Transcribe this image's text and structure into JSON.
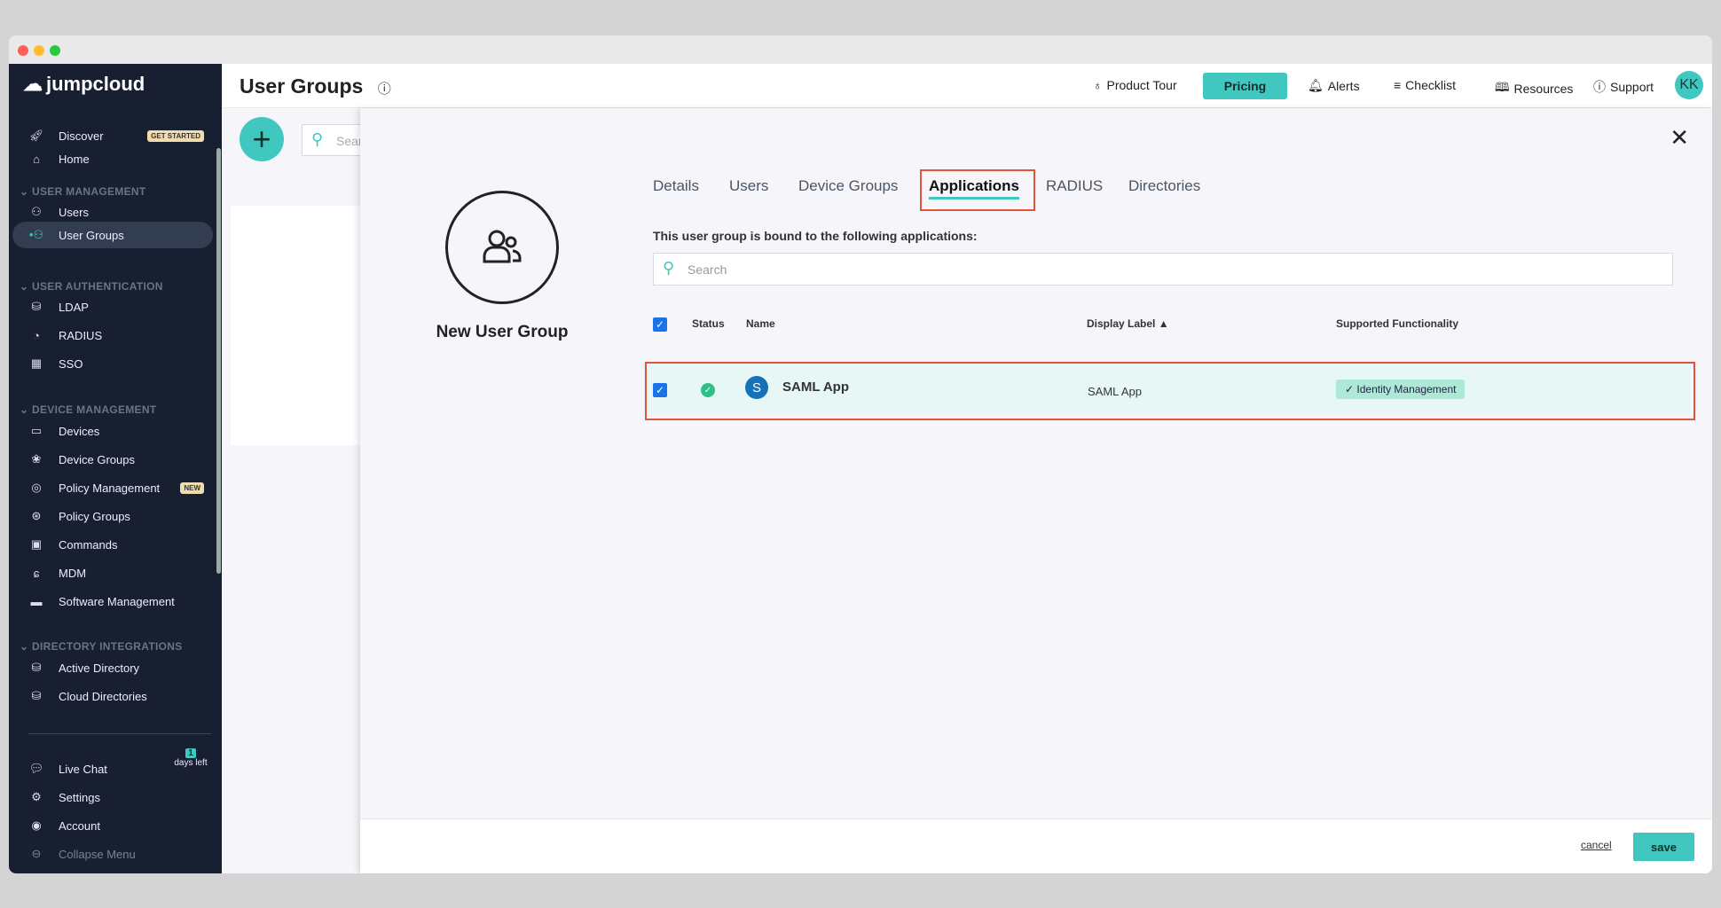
{
  "sidebar": {
    "logo": "jumpcloud",
    "top": [
      {
        "label": "Discover",
        "badge": "GET STARTED"
      },
      {
        "label": "Home"
      }
    ],
    "sections": [
      {
        "title": "USER MANAGEMENT",
        "items": [
          "Users",
          "User Groups"
        ]
      },
      {
        "title": "USER AUTHENTICATION",
        "items": [
          "LDAP",
          "RADIUS",
          "SSO"
        ]
      },
      {
        "title": "DEVICE MANAGEMENT",
        "items": [
          "Devices",
          "Device Groups",
          "Policy Management",
          "Policy Groups",
          "Commands",
          "MDM",
          "Software Management"
        ]
      },
      {
        "title": "DIRECTORY INTEGRATIONS",
        "items": [
          "Active Directory",
          "Cloud Directories"
        ]
      }
    ],
    "policy_badge": "NEW",
    "bottom": [
      "Live Chat",
      "Settings",
      "Account",
      "Collapse Menu"
    ],
    "trial_days": "1",
    "trial_text": "days left"
  },
  "header": {
    "title": "User Groups",
    "product_tour": "Product Tour",
    "pricing": "Pricing",
    "alerts": "Alerts",
    "checklist": "Checklist",
    "resources": "Resources",
    "support": "Support",
    "avatar": "KK"
  },
  "background": {
    "search_placeholder": "Sear"
  },
  "modal": {
    "group_name": "New User Group",
    "tabs": [
      "Details",
      "Users",
      "Device Groups",
      "Applications",
      "RADIUS",
      "Directories"
    ],
    "active_tab": "Applications",
    "bound_text": "This user group is bound to the following applications:",
    "search_placeholder": "Search",
    "columns": [
      "Status",
      "Name",
      "Display Label ▲",
      "Supported Functionality"
    ],
    "rows": [
      {
        "checked": true,
        "status": "active",
        "avatar": "S",
        "name": "SAML App",
        "display_label": "SAML App",
        "functionality": "✓ Identity Management"
      }
    ],
    "cancel": "cancel",
    "save": "save"
  },
  "colors": {
    "accent": "#40c8c0",
    "sidebar": "#171f31",
    "highlight": "#e0553a"
  }
}
